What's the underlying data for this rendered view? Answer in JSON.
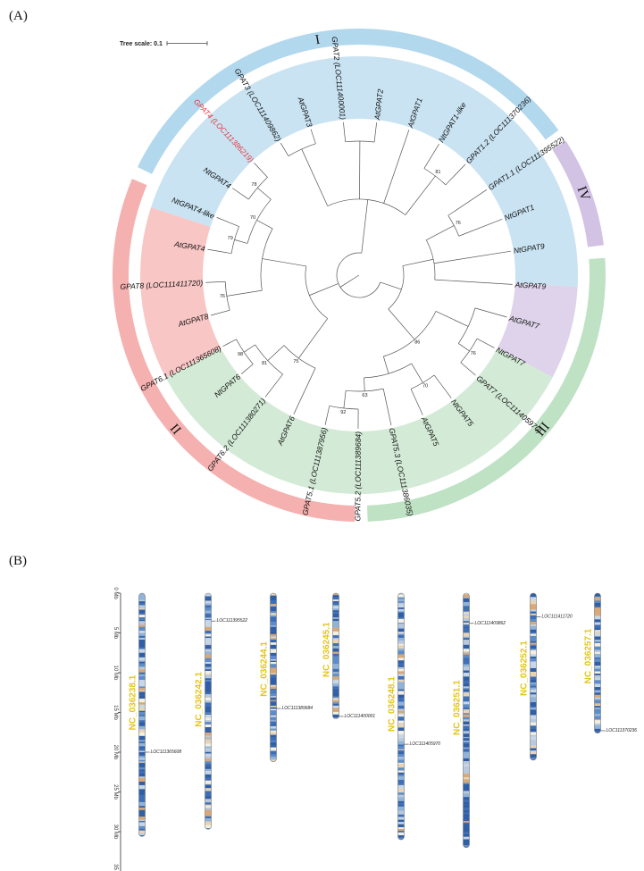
{
  "panels": {
    "a": "(A)",
    "b": "(B)"
  },
  "tree": {
    "scale_label": "Tree scale: 0.1",
    "colors": {
      "I": "#c9e3f2",
      "II": "#f8c6c5",
      "III": "#d3ebd6",
      "IV": "#ded3ea"
    },
    "ring_colors": {
      "I": "#b2d8ee",
      "II": "#f5b1b0",
      "III": "#bfe2c4",
      "IV": "#d2c2e4"
    },
    "clades": [
      {
        "id": "I",
        "label": "I"
      },
      {
        "id": "IV",
        "label": "IV"
      },
      {
        "id": "III",
        "label": "III"
      },
      {
        "id": "II",
        "label": "II"
      }
    ],
    "leaves": [
      {
        "name": "GPAT1.1 (LOC111395522)",
        "clade": "I"
      },
      {
        "name": "NtGPAT1",
        "clade": "I"
      },
      {
        "name": "NtGPAT9",
        "clade": "IV"
      },
      {
        "name": "AtGPAT9",
        "clade": "IV"
      },
      {
        "name": "AtGPAT7",
        "clade": "III"
      },
      {
        "name": "NtGPAT7",
        "clade": "III"
      },
      {
        "name": "GPAT7 (LOC111405970)",
        "clade": "III"
      },
      {
        "name": "NtGPAT5",
        "clade": "III"
      },
      {
        "name": "AtGPAT5",
        "clade": "III"
      },
      {
        "name": "GPAT5.3 (LOC111386035)",
        "clade": "III"
      },
      {
        "name": "GPAT5.2 (LOC111389684)",
        "clade": "III"
      },
      {
        "name": "GPAT5.1 (LOC111387956)",
        "clade": "III"
      },
      {
        "name": "AtGPAT6",
        "clade": "II"
      },
      {
        "name": "GPAT6.2 (LOC111380271)",
        "clade": "II"
      },
      {
        "name": "NtGPAT6",
        "clade": "II"
      },
      {
        "name": "GPAT6.1 (LOC111365608)",
        "clade": "II"
      },
      {
        "name": "AtGPAT8",
        "clade": "II"
      },
      {
        "name": "GPAT8 (LOC111411720)",
        "clade": "II"
      },
      {
        "name": "AtGPAT4",
        "clade": "II"
      },
      {
        "name": "NtGPAT4-like",
        "clade": "II"
      },
      {
        "name": "NtGPAT4",
        "clade": "II"
      },
      {
        "name": "GPAT4 (LOC111386219)",
        "clade": "II",
        "highlight": true
      },
      {
        "name": "GPAT3 (LOC111409862)",
        "clade": "I"
      },
      {
        "name": "AtGPAT3",
        "clade": "I"
      },
      {
        "name": "GPAT2 (LOC111400001)",
        "clade": "I"
      },
      {
        "name": "AtGPAT2",
        "clade": "I"
      },
      {
        "name": "AtGPAT1",
        "clade": "I"
      },
      {
        "name": "NtGPAT1-like",
        "clade": "I"
      },
      {
        "name": "GPAT1.2 (LOC111370236)",
        "clade": "I"
      }
    ],
    "bootstrap": [
      {
        "value": "81"
      },
      {
        "value": "76"
      },
      {
        "value": "86"
      },
      {
        "value": "76"
      },
      {
        "value": "70"
      },
      {
        "value": "63"
      },
      {
        "value": "92"
      },
      {
        "value": "75"
      },
      {
        "value": "81"
      },
      {
        "value": "98"
      },
      {
        "value": "76"
      },
      {
        "value": "70"
      },
      {
        "value": "79"
      },
      {
        "value": "78"
      }
    ]
  },
  "karyotype": {
    "ticks": [
      "0 Mb",
      "5 Mb",
      "10 Mb",
      "15 Mb",
      "20 Mb",
      "25 Mb",
      "30 Mb",
      "35 Mb"
    ],
    "band_colors": [
      "#2f5fa6",
      "#3d6fb8",
      "#5c8cc9",
      "#8fb3d9",
      "#c7d7e8",
      "#e8d4b4",
      "#d9a877",
      "#b8c9dd",
      "#f3efe2"
    ],
    "chromosomes": [
      {
        "name": "NC_036238.1",
        "length_mb": 30.6,
        "genes": [
          {
            "id": "LOC111365608",
            "pos_mb": 20.0
          }
        ]
      },
      {
        "name": "NC_036242.1",
        "length_mb": 29.7,
        "genes": [
          {
            "id": "LOC111395522",
            "pos_mb": 3.5
          }
        ]
      },
      {
        "name": "NC_036244.1",
        "length_mb": 21.2,
        "genes": [
          {
            "id": "LOC111389684",
            "pos_mb": 14.5
          }
        ]
      },
      {
        "name": "NC_036245.1",
        "length_mb": 15.8,
        "genes": [
          {
            "id": "LOC111400001",
            "pos_mb": 15.5
          }
        ]
      },
      {
        "name": "NC_036248.1",
        "length_mb": 31.0,
        "genes": [
          {
            "id": "LOC111405970",
            "pos_mb": 19.0
          }
        ]
      },
      {
        "name": "NC_036251.1",
        "length_mb": 32.0,
        "genes": [
          {
            "id": "LOC111409862",
            "pos_mb": 3.8
          }
        ]
      },
      {
        "name": "NC_036252.1",
        "length_mb": 21.0,
        "genes": [
          {
            "id": "LOC111411720",
            "pos_mb": 3.0
          }
        ]
      },
      {
        "name": "NC_036257.1",
        "length_mb": 17.6,
        "genes": [
          {
            "id": "LOC111370236",
            "pos_mb": 17.3
          }
        ]
      }
    ]
  }
}
